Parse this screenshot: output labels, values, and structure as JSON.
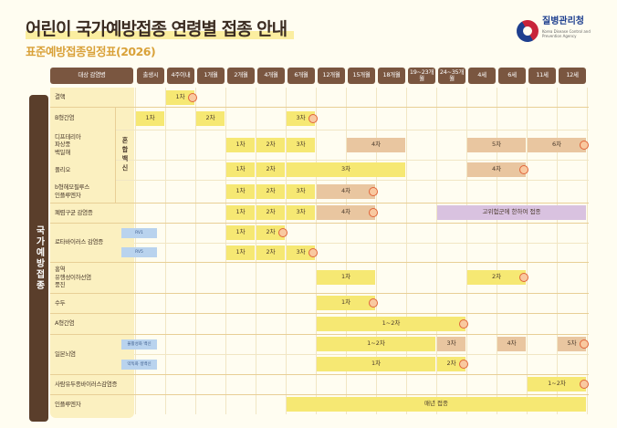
{
  "header": {
    "title": "어린이 국가예방접종 연령별 접종 안내",
    "subtitle": "표준예방접종일정표(2026)"
  },
  "logo": {
    "name": "질병관리청",
    "english": "Korea Disease Control and Prevention Agency"
  },
  "colors": {
    "primary_dose": "#f6e873",
    "booster_dose": "#e9c6a0",
    "high_risk": "#d9c2e0",
    "header": "#7a5640",
    "side_band": "#5a3e2b"
  },
  "table": {
    "disease_header": "대상 감염병",
    "ages": [
      "출생시",
      "4주이내",
      "1개월",
      "2개월",
      "4개월",
      "6개월",
      "12개월",
      "15개월",
      "18개월",
      "19~23개월",
      "24~35개월",
      "4세",
      "6세",
      "11세",
      "12세"
    ],
    "category": "국가예방접종",
    "combo_label": "혼합백신",
    "diseases": [
      {
        "name": "결핵",
        "rows": [
          0
        ]
      },
      {
        "name": "B형간염",
        "rows": [
          1
        ]
      },
      {
        "name": "디프테리아\n파상풍\n백일해",
        "rows": [
          2
        ]
      },
      {
        "name": "폴리오",
        "rows": [
          3
        ]
      },
      {
        "name": "b형헤모필루스\n인플루엔자",
        "rows": [
          4
        ]
      },
      {
        "name": "폐렴구균 감염증",
        "rows": [
          5
        ]
      },
      {
        "name": "로타바이러스 감염증",
        "rows": [
          6,
          7
        ]
      },
      {
        "name": "홍역\n유행성이하선염\n풍진",
        "rows": [
          8
        ]
      },
      {
        "name": "수두",
        "rows": [
          9
        ]
      },
      {
        "name": "A형간염",
        "rows": [
          10
        ]
      },
      {
        "name": "일본뇌염",
        "rows": [
          11,
          12
        ]
      },
      {
        "name": "사람유두종바이러스감염증",
        "rows": [
          13
        ]
      },
      {
        "name": "인플루엔자",
        "rows": [
          14
        ]
      }
    ],
    "badges": [
      {
        "row": 6,
        "label": "RV1"
      },
      {
        "row": 7,
        "label": "RV5"
      },
      {
        "row": 11,
        "label": "불활성화 백신"
      },
      {
        "row": 12,
        "label": "약독화 생백신"
      }
    ],
    "bars": [
      {
        "row": 0,
        "from": "4주이내",
        "to": "4주이내",
        "label": "1차",
        "type": "primary_dose",
        "stamp": true
      },
      {
        "row": 1,
        "from": "출생시",
        "to": "출생시",
        "label": "1차",
        "type": "primary_dose"
      },
      {
        "row": 1,
        "from": "1개월",
        "to": "1개월",
        "label": "2차",
        "type": "primary_dose"
      },
      {
        "row": 1,
        "from": "6개월",
        "to": "6개월",
        "label": "3차",
        "type": "primary_dose",
        "stamp": true
      },
      {
        "row": 2,
        "from": "2개월",
        "to": "2개월",
        "label": "1차",
        "type": "primary_dose"
      },
      {
        "row": 2,
        "from": "4개월",
        "to": "4개월",
        "label": "2차",
        "type": "primary_dose"
      },
      {
        "row": 2,
        "from": "6개월",
        "to": "6개월",
        "label": "3차",
        "type": "primary_dose"
      },
      {
        "row": 2,
        "from": "15개월",
        "to": "18개월",
        "label": "4차",
        "type": "booster_dose"
      },
      {
        "row": 2,
        "from": "4세",
        "to": "6세",
        "label": "5차",
        "type": "booster_dose"
      },
      {
        "row": 2,
        "from": "11세",
        "to": "12세",
        "label": "6차",
        "type": "booster_dose",
        "stamp": true
      },
      {
        "row": 3,
        "from": "2개월",
        "to": "2개월",
        "label": "1차",
        "type": "primary_dose"
      },
      {
        "row": 3,
        "from": "4개월",
        "to": "4개월",
        "label": "2차",
        "type": "primary_dose"
      },
      {
        "row": 3,
        "from": "6개월",
        "to": "18개월",
        "label": "3차",
        "type": "primary_dose"
      },
      {
        "row": 3,
        "from": "4세",
        "to": "6세",
        "label": "4차",
        "type": "booster_dose",
        "stamp": true
      },
      {
        "row": 4,
        "from": "2개월",
        "to": "2개월",
        "label": "1차",
        "type": "primary_dose"
      },
      {
        "row": 4,
        "from": "4개월",
        "to": "4개월",
        "label": "2차",
        "type": "primary_dose"
      },
      {
        "row": 4,
        "from": "6개월",
        "to": "6개월",
        "label": "3차",
        "type": "primary_dose"
      },
      {
        "row": 4,
        "from": "12개월",
        "to": "15개월",
        "label": "4차",
        "type": "booster_dose",
        "stamp": true
      },
      {
        "row": 5,
        "from": "2개월",
        "to": "2개월",
        "label": "1차",
        "type": "primary_dose"
      },
      {
        "row": 5,
        "from": "4개월",
        "to": "4개월",
        "label": "2차",
        "type": "primary_dose"
      },
      {
        "row": 5,
        "from": "6개월",
        "to": "6개월",
        "label": "3차",
        "type": "primary_dose"
      },
      {
        "row": 5,
        "from": "12개월",
        "to": "15개월",
        "label": "4차",
        "type": "booster_dose",
        "stamp": true
      },
      {
        "row": 5,
        "from": "24~35개월",
        "to": "12세",
        "label": "고위험군에 한하여 접종",
        "type": "high_risk"
      },
      {
        "row": 6,
        "from": "2개월",
        "to": "2개월",
        "label": "1차",
        "type": "primary_dose"
      },
      {
        "row": 6,
        "from": "4개월",
        "to": "4개월",
        "label": "2차",
        "type": "primary_dose",
        "stamp": true
      },
      {
        "row": 7,
        "from": "2개월",
        "to": "2개월",
        "label": "1차",
        "type": "primary_dose"
      },
      {
        "row": 7,
        "from": "4개월",
        "to": "4개월",
        "label": "2차",
        "type": "primary_dose"
      },
      {
        "row": 7,
        "from": "6개월",
        "to": "6개월",
        "label": "3차",
        "type": "primary_dose",
        "stamp": true
      },
      {
        "row": 8,
        "from": "12개월",
        "to": "15개월",
        "label": "1차",
        "type": "primary_dose"
      },
      {
        "row": 8,
        "from": "4세",
        "to": "6세",
        "label": "2차",
        "type": "primary_dose",
        "stamp": true
      },
      {
        "row": 9,
        "from": "12개월",
        "to": "15개월",
        "label": "1차",
        "type": "primary_dose",
        "stamp": true
      },
      {
        "row": 10,
        "from": "12개월",
        "to": "24~35개월",
        "label": "1~2차",
        "type": "primary_dose",
        "stamp": true
      },
      {
        "row": 11,
        "from": "12개월",
        "to": "19~23개월",
        "label": "1~2차",
        "type": "primary_dose"
      },
      {
        "row": 11,
        "from": "24~35개월",
        "to": "24~35개월",
        "label": "3차",
        "type": "booster_dose"
      },
      {
        "row": 11,
        "from": "6세",
        "to": "6세",
        "label": "4차",
        "type": "booster_dose"
      },
      {
        "row": 11,
        "from": "12세",
        "to": "12세",
        "label": "5차",
        "type": "booster_dose",
        "stamp": true
      },
      {
        "row": 12,
        "from": "12개월",
        "to": "19~23개월",
        "label": "1차",
        "type": "primary_dose"
      },
      {
        "row": 12,
        "from": "24~35개월",
        "to": "24~35개월",
        "label": "2차",
        "type": "primary_dose",
        "stamp": true
      },
      {
        "row": 13,
        "from": "11세",
        "to": "12세",
        "label": "1~2차",
        "type": "primary_dose",
        "stamp": true
      },
      {
        "row": 14,
        "from": "6개월",
        "to": "12세",
        "label": "매년 접종",
        "type": "primary_dose"
      }
    ]
  }
}
